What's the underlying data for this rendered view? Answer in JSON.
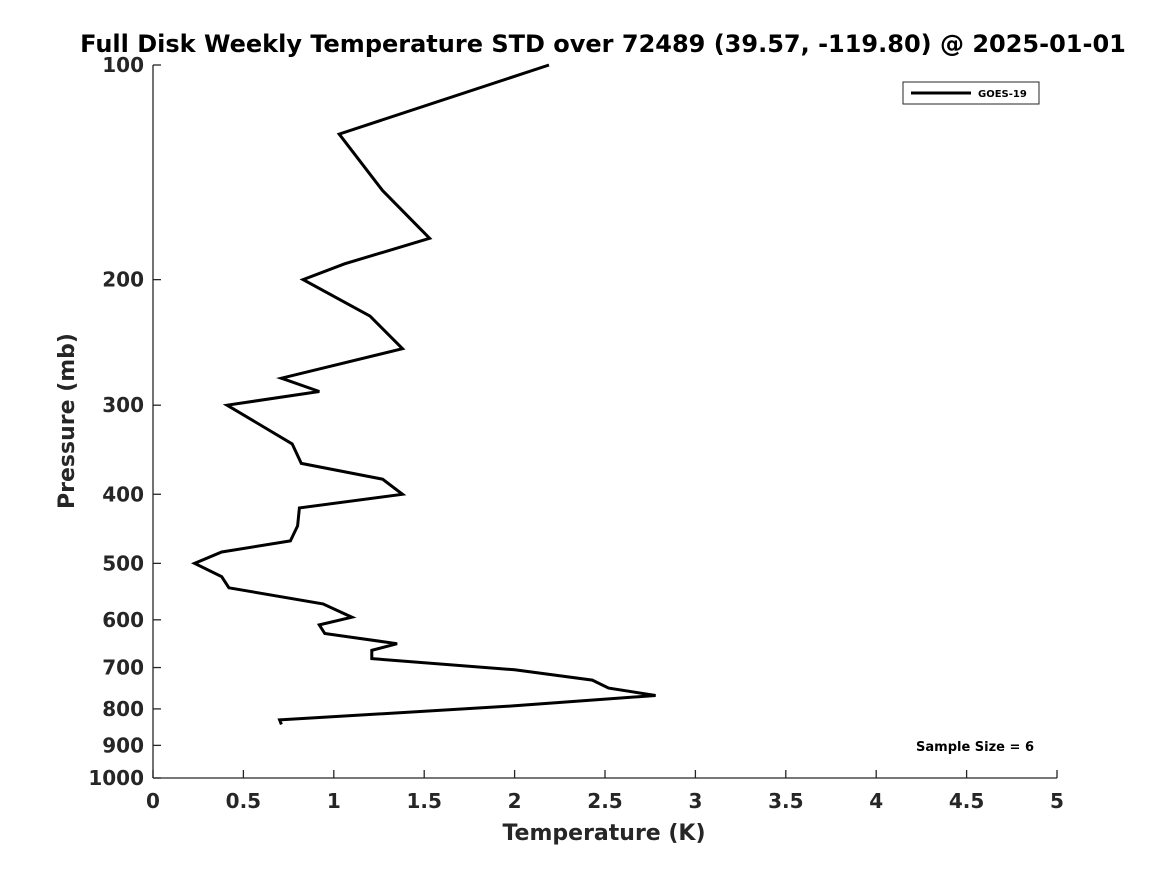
{
  "chart_data": {
    "type": "line",
    "title": "Full Disk Weekly Temperature STD over 72489 (39.57, -119.80) @ 2025-01-01",
    "xlabel": "Temperature (K)",
    "ylabel": "Pressure (mb)",
    "xlim": [
      0,
      5
    ],
    "ylim": [
      100,
      1000
    ],
    "y_scale": "log",
    "y_reversed": true,
    "x_ticks": [
      0,
      0.5,
      1,
      1.5,
      2,
      2.5,
      3,
      3.5,
      4,
      4.5,
      5
    ],
    "x_tick_labels": [
      "0",
      "0.5",
      "1",
      "1.5",
      "2",
      "2.5",
      "3",
      "3.5",
      "4",
      "4.5",
      "5"
    ],
    "y_ticks": [
      100,
      200,
      300,
      400,
      500,
      600,
      700,
      800,
      900,
      1000
    ],
    "y_tick_labels": [
      "100",
      "200",
      "300",
      "400",
      "500",
      "600",
      "700",
      "800",
      "900",
      "1000"
    ],
    "grid": false,
    "legend_position": "top-right",
    "annotation": "Sample Size = 6",
    "series": [
      {
        "name": "GOES-19",
        "color": "#000000",
        "points": [
          [
            2.19,
            100
          ],
          [
            1.03,
            125
          ],
          [
            1.27,
            150
          ],
          [
            1.53,
            175
          ],
          [
            1.06,
            190
          ],
          [
            0.83,
            200
          ],
          [
            1.2,
            225
          ],
          [
            1.38,
            250
          ],
          [
            0.71,
            275
          ],
          [
            0.92,
            287
          ],
          [
            0.41,
            300
          ],
          [
            0.77,
            340
          ],
          [
            0.82,
            362
          ],
          [
            1.27,
            381
          ],
          [
            1.38,
            400
          ],
          [
            0.81,
            418
          ],
          [
            0.8,
            443
          ],
          [
            0.76,
            465
          ],
          [
            0.38,
            482
          ],
          [
            0.23,
            500
          ],
          [
            0.38,
            522
          ],
          [
            0.42,
            541
          ],
          [
            0.94,
            570
          ],
          [
            1.1,
            595
          ],
          [
            0.92,
            610
          ],
          [
            0.95,
            627
          ],
          [
            1.35,
            648
          ],
          [
            1.21,
            662
          ],
          [
            1.21,
            680
          ],
          [
            2.0,
            705
          ],
          [
            2.43,
            729
          ],
          [
            2.52,
            748
          ],
          [
            2.78,
            766
          ],
          [
            2.0,
            792
          ],
          [
            0.7,
            829
          ],
          [
            0.71,
            841
          ]
        ]
      }
    ]
  }
}
